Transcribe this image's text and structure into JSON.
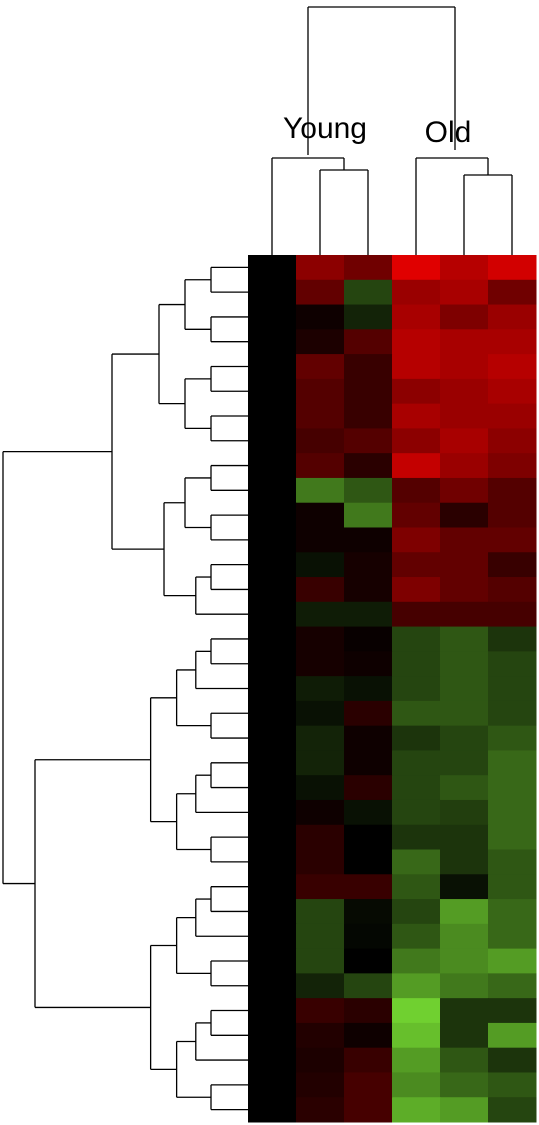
{
  "chart_data": {
    "type": "heatmap",
    "group_labels": [
      "Young",
      "Old"
    ],
    "zlim": [
      -0.6,
      0.8
    ],
    "colormap": {
      "low": "#70d030",
      "mid": "#000000",
      "high": "#e00000"
    },
    "values": [
      [
        0,
        0.5,
        0.4,
        0.8,
        0.65,
        0.75
      ],
      [
        0,
        0.35,
        -0.2,
        0.55,
        0.6,
        0.4
      ],
      [
        0,
        0.05,
        -0.1,
        0.6,
        0.45,
        0.55
      ],
      [
        0,
        0.1,
        0.3,
        0.65,
        0.6,
        0.6
      ],
      [
        0,
        0.35,
        0.2,
        0.65,
        0.6,
        0.65
      ],
      [
        0,
        0.3,
        0.2,
        0.5,
        0.55,
        0.6
      ],
      [
        0,
        0.3,
        0.2,
        0.6,
        0.55,
        0.55
      ],
      [
        0,
        0.25,
        0.3,
        0.5,
        0.6,
        0.5
      ],
      [
        0,
        0.3,
        0.15,
        0.7,
        0.55,
        0.45
      ],
      [
        0,
        -0.35,
        -0.25,
        0.3,
        0.4,
        0.3
      ],
      [
        0,
        0.05,
        -0.35,
        0.35,
        0.15,
        0.3
      ],
      [
        0,
        0.05,
        0.05,
        0.45,
        0.35,
        0.35
      ],
      [
        0,
        -0.05,
        0.08,
        0.35,
        0.35,
        0.2
      ],
      [
        0,
        0.2,
        0.08,
        0.45,
        0.35,
        0.3
      ],
      [
        0,
        -0.08,
        -0.08,
        0.25,
        0.25,
        0.25
      ],
      [
        0,
        0.08,
        0.03,
        -0.2,
        -0.25,
        -0.15
      ],
      [
        0,
        0.08,
        0.05,
        -0.2,
        -0.25,
        -0.2
      ],
      [
        0,
        -0.08,
        -0.05,
        -0.2,
        -0.25,
        -0.2
      ],
      [
        0,
        -0.05,
        0.15,
        -0.25,
        -0.25,
        -0.2
      ],
      [
        0,
        -0.1,
        0.05,
        -0.15,
        -0.2,
        -0.25
      ],
      [
        0,
        -0.1,
        0.05,
        -0.2,
        -0.2,
        -0.3
      ],
      [
        0,
        -0.05,
        0.15,
        -0.2,
        -0.25,
        -0.3
      ],
      [
        0,
        0.05,
        -0.05,
        -0.2,
        -0.18,
        -0.3
      ],
      [
        0,
        0.15,
        0,
        -0.15,
        -0.15,
        -0.3
      ],
      [
        0,
        0.15,
        0,
        -0.3,
        -0.15,
        -0.25
      ],
      [
        0,
        0.2,
        0.2,
        -0.25,
        -0.05,
        -0.25
      ],
      [
        0,
        -0.2,
        -0.03,
        -0.2,
        -0.45,
        -0.3
      ],
      [
        0,
        -0.2,
        -0.02,
        -0.25,
        -0.4,
        -0.3
      ],
      [
        0,
        -0.2,
        0,
        -0.35,
        -0.4,
        -0.45
      ],
      [
        0,
        -0.1,
        -0.2,
        -0.45,
        -0.35,
        -0.3
      ],
      [
        0,
        0.2,
        0.15,
        -0.6,
        -0.15,
        -0.15
      ],
      [
        0,
        0.12,
        0.05,
        -0.55,
        -0.15,
        -0.45
      ],
      [
        0,
        0.1,
        0.2,
        -0.45,
        -0.25,
        -0.15
      ],
      [
        0,
        0.12,
        0.25,
        -0.4,
        -0.3,
        -0.25
      ],
      [
        0,
        0.15,
        0.25,
        -0.5,
        -0.45,
        -0.2
      ]
    ]
  }
}
